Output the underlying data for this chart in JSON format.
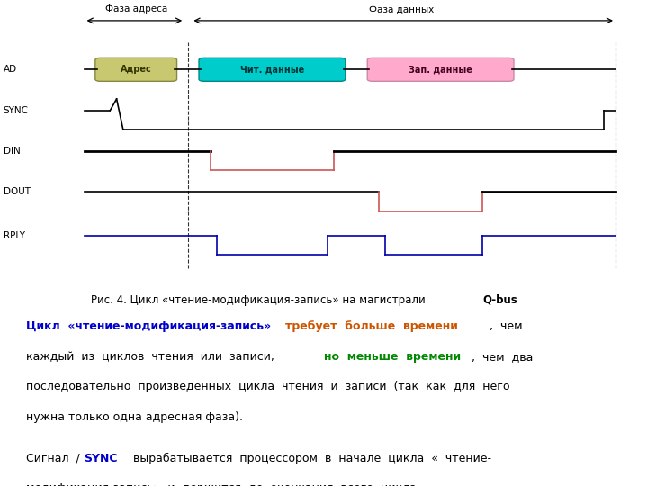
{
  "bg_color": "#ffffff",
  "fig_width": 7.2,
  "fig_height": 5.4,
  "signals": [
    "AD",
    "SYNC",
    "DIN",
    "DOUT",
    "RPLY"
  ],
  "phase_addr_label": "Фаза адреса",
  "phase_data_label": "Фаза данных",
  "caption_pre": "Рис. 4. Цикл «чтение-модификация-запись» на магистрали ",
  "caption_bold": "Q-bus",
  "addr_box_label": "Адрес",
  "read_box_label": "Чит. данные",
  "write_box_label": "Зап. данные",
  "addr_box_color": "#c8c870",
  "read_box_color": "#00cccc",
  "write_box_color": "#ffaacc",
  "addr_box_edge": "#888840",
  "read_box_edge": "#008888",
  "write_box_edge": "#cc88aa"
}
